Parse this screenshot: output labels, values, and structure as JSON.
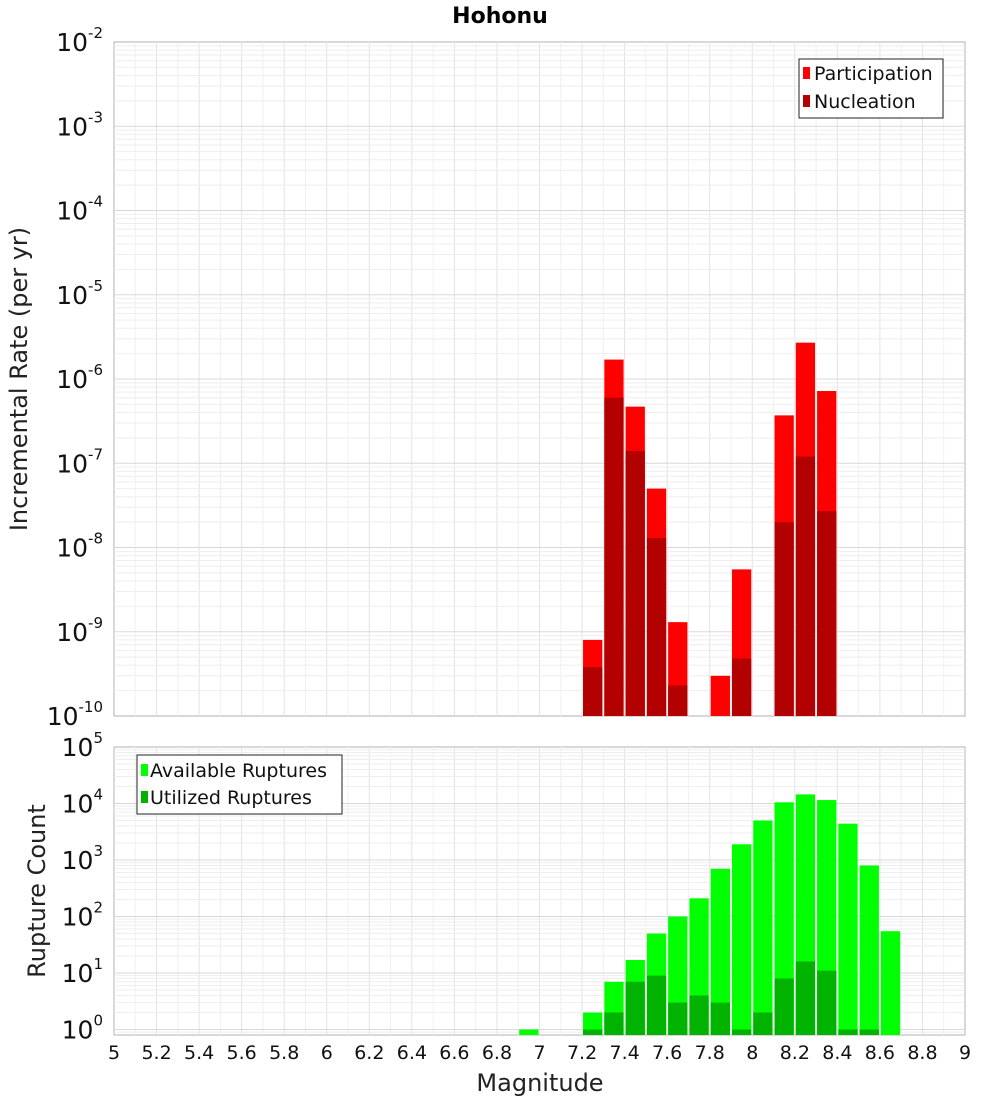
{
  "chart_data": [
    {
      "type": "bar",
      "title": "Hohonu",
      "ylabel": "Incremental Rate (per yr)",
      "xlabel": "",
      "xlim": [
        5,
        9
      ],
      "ylim": [
        1e-10,
        0.01
      ],
      "yscale": "log",
      "grid": true,
      "legend_position": "top-right",
      "bin_width": 0.1,
      "yticks": [
        {
          "base": "10",
          "exp": "-2"
        },
        {
          "base": "10",
          "exp": "-3"
        },
        {
          "base": "10",
          "exp": "-4"
        },
        {
          "base": "10",
          "exp": "-5"
        },
        {
          "base": "10",
          "exp": "-6"
        },
        {
          "base": "10",
          "exp": "-7"
        },
        {
          "base": "10",
          "exp": "-8"
        },
        {
          "base": "10",
          "exp": "-9"
        },
        {
          "base": "10",
          "exp": "-10"
        }
      ],
      "series": [
        {
          "name": "Participation",
          "color": "#ff0000",
          "x": [
            7.25,
            7.35,
            7.45,
            7.55,
            7.65,
            7.85,
            7.95,
            8.15,
            8.25,
            8.35
          ],
          "values": [
            8e-10,
            1.7e-06,
            4.7e-07,
            5e-08,
            1.3e-09,
            3e-10,
            5.5e-09,
            3.7e-07,
            2.7e-06,
            7.2e-07
          ]
        },
        {
          "name": "Nucleation",
          "color": "#b30000",
          "x": [
            7.25,
            7.35,
            7.45,
            7.55,
            7.65,
            7.95,
            8.15,
            8.25,
            8.35
          ],
          "values": [
            3.8e-10,
            6e-07,
            1.4e-07,
            1.3e-08,
            2.3e-10,
            4.8e-10,
            2e-08,
            1.2e-07,
            2.7e-08
          ]
        }
      ]
    },
    {
      "type": "bar",
      "title": "",
      "ylabel": "Rupture Count",
      "xlabel": "Magnitude",
      "xlim": [
        5,
        9
      ],
      "ylim": [
        0.8,
        100000
      ],
      "yscale": "log",
      "grid": true,
      "legend_position": "top-left",
      "bin_width": 0.1,
      "xticks": [
        "5",
        "5.2",
        "5.4",
        "5.6",
        "5.8",
        "6",
        "6.2",
        "6.4",
        "6.6",
        "6.8",
        "7",
        "7.2",
        "7.4",
        "7.6",
        "7.8",
        "8",
        "8.2",
        "8.4",
        "8.6",
        "8.8",
        "9"
      ],
      "yticks": [
        {
          "base": "10",
          "exp": "5"
        },
        {
          "base": "10",
          "exp": "4"
        },
        {
          "base": "10",
          "exp": "3"
        },
        {
          "base": "10",
          "exp": "2"
        },
        {
          "base": "10",
          "exp": "1"
        },
        {
          "base": "10",
          "exp": "0"
        }
      ],
      "series": [
        {
          "name": "Available Ruptures",
          "color": "#00ff00",
          "x": [
            6.95,
            7.25,
            7.35,
            7.45,
            7.55,
            7.65,
            7.75,
            7.85,
            7.95,
            8.05,
            8.15,
            8.25,
            8.35,
            8.45,
            8.55,
            8.65
          ],
          "values": [
            1,
            2,
            7,
            17,
            50,
            100,
            210,
            700,
            1900,
            5000,
            10500,
            14500,
            11500,
            4400,
            800,
            55
          ]
        },
        {
          "name": "Utilized Ruptures",
          "color": "#00b300",
          "x": [
            7.25,
            7.35,
            7.45,
            7.55,
            7.65,
            7.75,
            7.85,
            7.95,
            8.05,
            8.15,
            8.25,
            8.35,
            8.45,
            8.55
          ],
          "values": [
            1,
            2,
            7,
            9,
            3,
            4,
            3,
            1,
            2,
            8,
            16,
            11,
            1,
            1
          ]
        }
      ]
    }
  ]
}
